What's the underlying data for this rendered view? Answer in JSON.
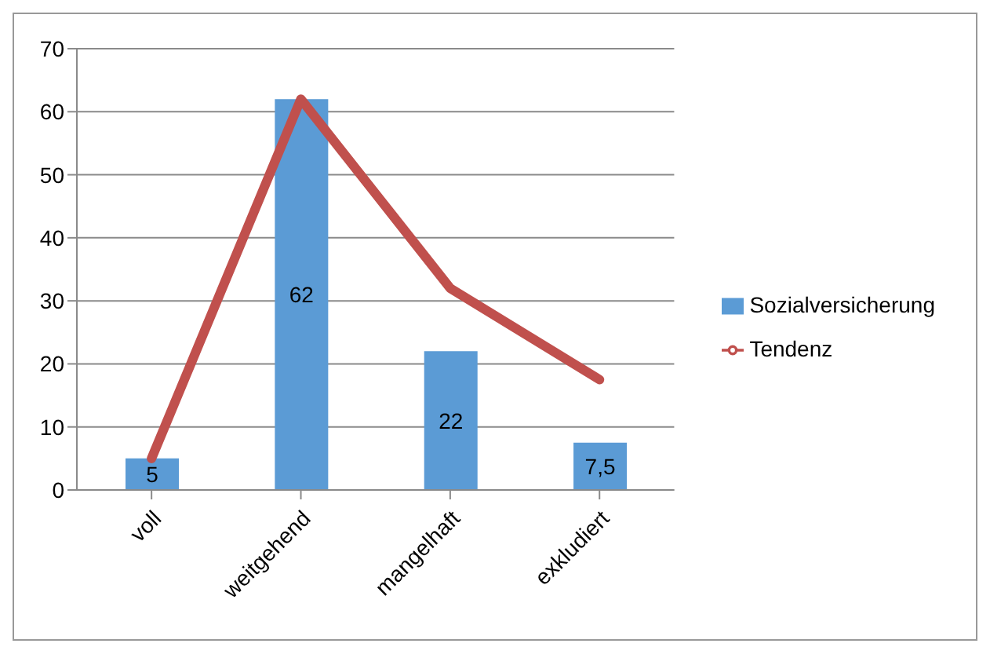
{
  "chart_data": {
    "type": "bar",
    "categories": [
      "voll",
      "weitgehend",
      "mangelhaft",
      "exkludiert"
    ],
    "series": [
      {
        "name": "Sozialversicherung",
        "color": "#5b9bd5",
        "values": [
          5,
          62,
          22,
          7.5
        ],
        "value_labels": [
          "5",
          "62",
          "22",
          "7,5"
        ]
      },
      {
        "name": "Tendenz",
        "type": "line",
        "color": "#c0504d",
        "values": [
          5,
          62,
          32,
          17.5
        ]
      }
    ],
    "ylim": [
      0,
      70
    ],
    "yticks": [
      0,
      10,
      20,
      30,
      40,
      50,
      60,
      70
    ],
    "grid": "y",
    "legend": "right",
    "marker": "none"
  }
}
